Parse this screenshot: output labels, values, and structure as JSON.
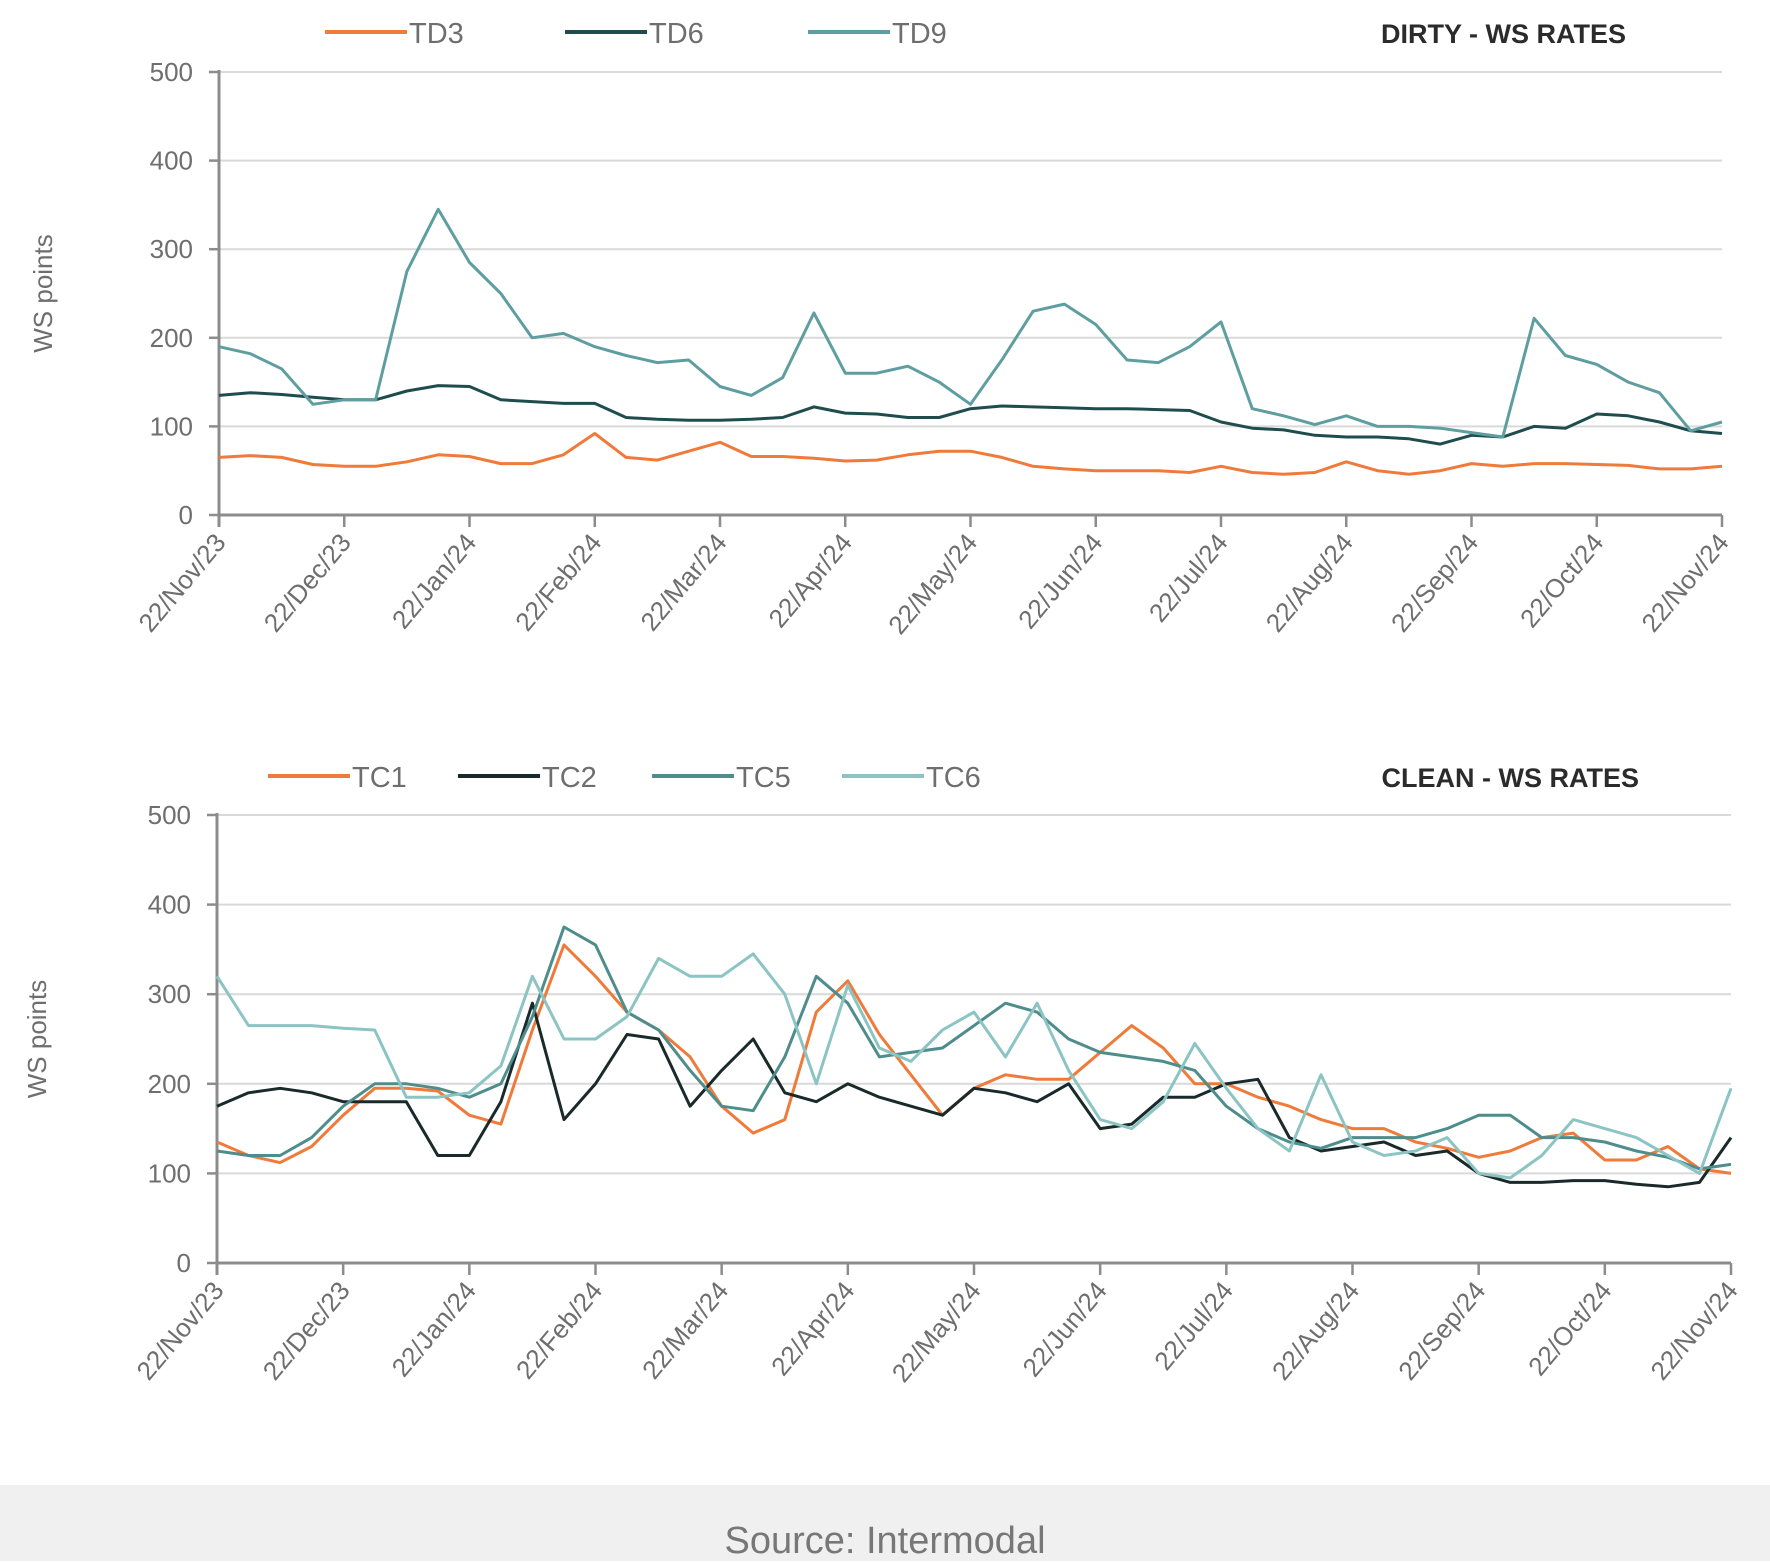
{
  "chart_data": [
    {
      "id": "dirty",
      "type": "line",
      "title": "DIRTY - WS RATES",
      "xlabel": "",
      "ylabel": "WS points",
      "ylim": [
        0,
        500
      ],
      "yticks": [
        0,
        100,
        200,
        300,
        400,
        500
      ],
      "grid": true,
      "legend": "top-left",
      "x_tick_labels": [
        "22/Nov/23",
        "22/Dec/23",
        "22/Jan/24",
        "22/Feb/24",
        "22/Mar/24",
        "22/Apr/24",
        "22/May/24",
        "22/Jun/24",
        "22/Jul/24",
        "22/Aug/24",
        "22/Sep/24",
        "22/Oct/24",
        "22/Nov/24"
      ],
      "x_range": [
        "22/Nov/23",
        "22/Nov/24"
      ],
      "x_sampling": "approx. weekly (49 points)",
      "series": [
        {
          "name": "TD3",
          "color": "#f07a3a",
          "values": [
            65,
            67,
            65,
            57,
            55,
            55,
            60,
            68,
            66,
            58,
            58,
            68,
            92,
            65,
            62,
            72,
            82,
            66,
            66,
            64,
            61,
            62,
            68,
            72,
            72,
            65,
            55,
            52,
            50,
            50,
            50,
            48,
            55,
            48,
            46,
            48,
            60,
            50,
            46,
            50,
            58,
            55,
            58,
            58,
            57,
            56,
            52,
            52,
            55
          ]
        },
        {
          "name": "TD6",
          "color": "#1f4d4d",
          "values": [
            135,
            138,
            136,
            133,
            130,
            130,
            140,
            146,
            145,
            130,
            128,
            126,
            126,
            110,
            108,
            107,
            107,
            108,
            110,
            122,
            115,
            114,
            110,
            110,
            120,
            123,
            122,
            121,
            120,
            120,
            119,
            118,
            105,
            98,
            96,
            90,
            88,
            88,
            86,
            80,
            90,
            88,
            100,
            98,
            114,
            112,
            105,
            95,
            92
          ]
        },
        {
          "name": "TD9",
          "color": "#5f9ea0",
          "values": [
            190,
            182,
            165,
            125,
            130,
            130,
            275,
            345,
            285,
            250,
            200,
            205,
            190,
            180,
            172,
            175,
            145,
            135,
            155,
            228,
            160,
            160,
            168,
            150,
            125,
            175,
            230,
            238,
            215,
            175,
            172,
            190,
            218,
            120,
            112,
            102,
            112,
            100,
            100,
            98,
            93,
            88,
            222,
            180,
            170,
            150,
            138,
            95,
            105
          ]
        }
      ]
    },
    {
      "id": "clean",
      "type": "line",
      "title": "CLEAN - WS RATES",
      "xlabel": "",
      "ylabel": "WS points",
      "ylim": [
        0,
        500
      ],
      "yticks": [
        0,
        100,
        200,
        300,
        400,
        500
      ],
      "grid": true,
      "legend": "top-left",
      "x_tick_labels": [
        "22/Nov/23",
        "22/Dec/23",
        "22/Jan/24",
        "22/Feb/24",
        "22/Mar/24",
        "22/Apr/24",
        "22/May/24",
        "22/Jun/24",
        "22/Jul/24",
        "22/Aug/24",
        "22/Sep/24",
        "22/Oct/24",
        "22/Nov/24"
      ],
      "x_range": [
        "22/Nov/23",
        "22/Nov/24"
      ],
      "x_sampling": "approx. weekly (49 points)",
      "series": [
        {
          "name": "TC1",
          "color": "#f07a3a",
          "values": [
            135,
            120,
            112,
            130,
            165,
            195,
            195,
            192,
            165,
            155,
            260,
            355,
            320,
            280,
            260,
            230,
            175,
            145,
            160,
            280,
            315,
            255,
            210,
            165,
            195,
            210,
            205,
            205,
            235,
            265,
            240,
            200,
            200,
            185,
            175,
            160,
            150,
            150,
            135,
            128,
            118,
            125,
            140,
            145,
            115,
            115,
            130,
            105,
            100
          ]
        },
        {
          "name": "TC2",
          "color": "#1a2a2a",
          "values": [
            175,
            190,
            195,
            190,
            180,
            180,
            180,
            120,
            120,
            180,
            290,
            160,
            200,
            255,
            250,
            175,
            215,
            250,
            190,
            180,
            200,
            185,
            175,
            165,
            195,
            190,
            180,
            200,
            150,
            155,
            185,
            185,
            200,
            205,
            140,
            125,
            130,
            135,
            120,
            125,
            100,
            90,
            90,
            92,
            92,
            88,
            85,
            90,
            140
          ]
        },
        {
          "name": "TC5",
          "color": "#4f8c8c",
          "values": [
            125,
            120,
            120,
            140,
            175,
            200,
            200,
            195,
            185,
            200,
            275,
            375,
            355,
            280,
            260,
            215,
            175,
            170,
            230,
            320,
            290,
            230,
            235,
            240,
            265,
            290,
            280,
            250,
            235,
            230,
            225,
            215,
            175,
            150,
            135,
            128,
            140,
            140,
            140,
            150,
            165,
            165,
            140,
            140,
            135,
            125,
            118,
            105,
            110
          ]
        },
        {
          "name": "TC6",
          "color": "#8cc4c4",
          "values": [
            320,
            265,
            265,
            265,
            262,
            260,
            185,
            185,
            190,
            220,
            320,
            250,
            250,
            275,
            340,
            320,
            320,
            345,
            300,
            200,
            310,
            240,
            225,
            260,
            280,
            230,
            290,
            215,
            160,
            150,
            180,
            245,
            195,
            150,
            125,
            210,
            135,
            120,
            125,
            140,
            100,
            95,
            120,
            160,
            150,
            140,
            120,
            100,
            195
          ]
        }
      ]
    }
  ],
  "footer": {
    "source": "Source: Intermodal"
  }
}
